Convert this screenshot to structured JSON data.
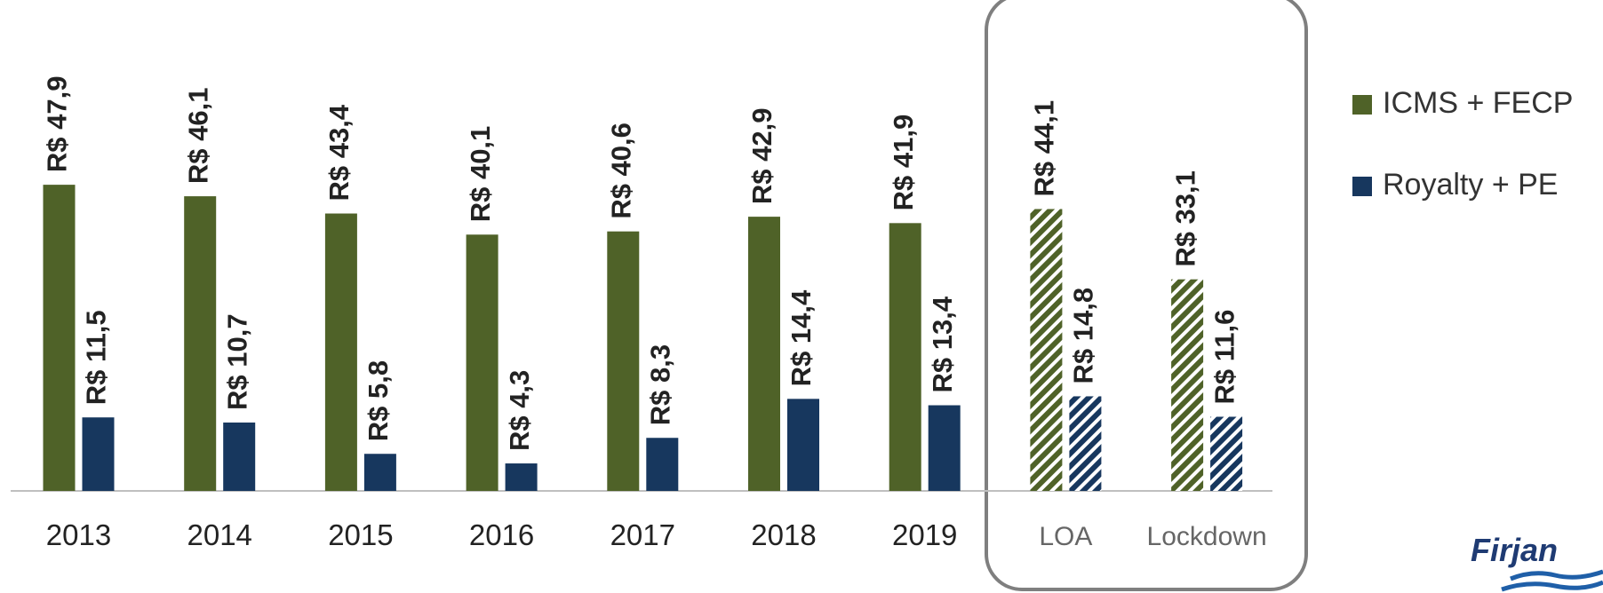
{
  "chart_data": {
    "type": "bar",
    "categories": [
      "2013",
      "2014",
      "2015",
      "2016",
      "2017",
      "2018",
      "2019",
      "LOA",
      "Lockdown"
    ],
    "hatched": [
      false,
      false,
      false,
      false,
      false,
      false,
      false,
      true,
      true
    ],
    "series": [
      {
        "name": "ICMS + FECP",
        "color": "#4f6228",
        "values": [
          47.9,
          46.1,
          43.4,
          40.1,
          40.6,
          42.9,
          41.9,
          44.1,
          33.1
        ],
        "value_labels": [
          "R$ 47,9",
          "R$ 46,1",
          "R$ 43,4",
          "R$ 40,1",
          "R$ 40,6",
          "R$ 42,9",
          "R$ 41,9",
          "R$ 44,1",
          "R$ 33,1"
        ]
      },
      {
        "name": "Royalty + PE",
        "color": "#17375e",
        "values": [
          11.5,
          10.7,
          5.8,
          4.3,
          8.3,
          14.4,
          13.4,
          14.8,
          11.6
        ],
        "value_labels": [
          "R$ 11,5",
          "R$ 10,7",
          "R$ 5,8",
          "R$ 4,3",
          "R$ 8,3",
          "R$ 14,4",
          "R$ 13,4",
          "R$ 14,8",
          "R$ 11,6"
        ]
      }
    ],
    "legend": "right",
    "logo": "Firjan"
  }
}
